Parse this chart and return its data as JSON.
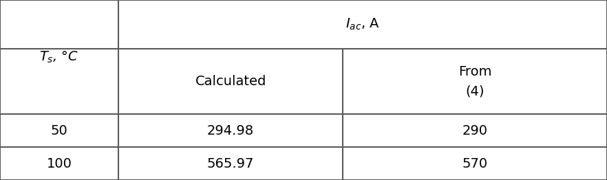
{
  "col1_header": "$T_s$, °C",
  "col2_top_header": "$I_{ac}$, A",
  "col2_sub_header": "Calculated",
  "col3_sub_header": "From\n(4)",
  "rows": [
    {
      "ts": "50",
      "calc": "294.98",
      "from4": "290"
    },
    {
      "ts": "100",
      "calc": "565.97",
      "from4": "570"
    }
  ],
  "line_color": "#5a5a5a",
  "text_color": "#000000",
  "bg_color": "#ffffff",
  "font_size": 14,
  "c0": 0.0,
  "c1": 0.195,
  "c2": 0.565,
  "c3": 1.0,
  "r0": 1.0,
  "r1": 0.728,
  "r2": 0.365,
  "r3": 0.183,
  "r4": 0.0
}
